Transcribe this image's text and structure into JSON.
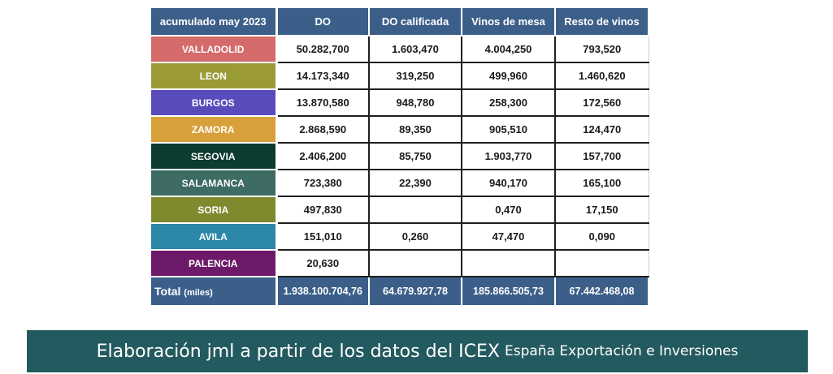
{
  "table": {
    "headers": [
      "acumulado may 2023",
      "DO",
      "DO calificada",
      "Vinos de mesa",
      "Resto de vinos"
    ],
    "rows": [
      {
        "region": "VALLADOLID",
        "color": "#d46a6a",
        "values": [
          "50.282,700",
          "1.603,470",
          "4.004,250",
          "793,520"
        ]
      },
      {
        "region": "LEON",
        "color": "#9a9b36",
        "values": [
          "14.173,340",
          "319,250",
          "499,960",
          "1.460,620"
        ]
      },
      {
        "region": "BURGOS",
        "color": "#5a4bbb",
        "values": [
          "13.870,580",
          "948,780",
          "258,300",
          "172,560"
        ]
      },
      {
        "region": "ZAMORA",
        "color": "#d7a03a",
        "values": [
          "2.868,590",
          "89,350",
          "905,510",
          "124,470"
        ]
      },
      {
        "region": "SEGOVIA",
        "color": "#0c3b2f",
        "values": [
          "2.406,200",
          "85,750",
          "1.903,770",
          "157,700"
        ]
      },
      {
        "region": "SALAMANCA",
        "color": "#3e6b64",
        "values": [
          "723,380",
          "22,390",
          "940,170",
          "165,100"
        ]
      },
      {
        "region": "SORIA",
        "color": "#7f8a2f",
        "values": [
          "497,830",
          "",
          "0,470",
          "17,150"
        ]
      },
      {
        "region": "AVILA",
        "color": "#2c87a8",
        "values": [
          "151,010",
          "0,260",
          "47,470",
          "0,090"
        ]
      },
      {
        "region": "PALENCIA",
        "color": "#6e1a6b",
        "values": [
          "20,630",
          "",
          "",
          ""
        ]
      }
    ],
    "total": {
      "label": "Total",
      "sublabel": "(miles)",
      "values": [
        "1.938.100.704,76",
        "64.679.927,78",
        "185.866.505,73",
        "67.442.468,08"
      ]
    }
  },
  "banner": {
    "main": "Elaboración jml a partir de los datos del ICEX",
    "rest": "España Exportación e Inversiones"
  },
  "colors": {
    "header_bg": "#3c5f8a",
    "banner_bg": "#235a5f"
  }
}
